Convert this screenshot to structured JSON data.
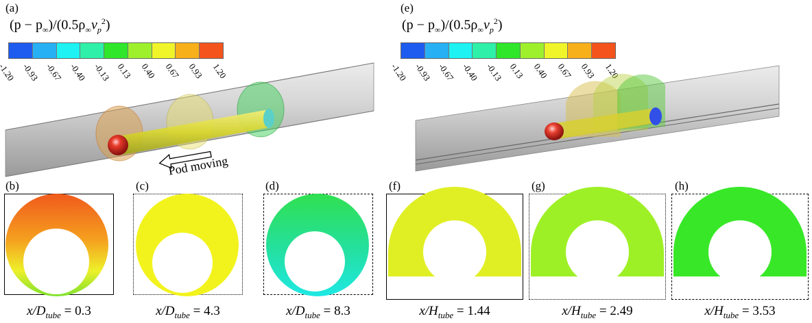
{
  "panels": {
    "a": "(a)",
    "b": "(b)",
    "c": "(c)",
    "d": "(d)",
    "e": "(e)",
    "f": "(f)",
    "g": "(g)",
    "h": "(h)"
  },
  "colorbar": {
    "title_left": "(p − p",
    "title_inf": "∞",
    "title_mid": ")/(0.5ρ",
    "title_v": "v",
    "title_p": "p",
    "title_sq": "2",
    "title_close": ")",
    "ticks": [
      "-1.20",
      "-0.93",
      "-0.67",
      "-0.40",
      "-0.13",
      "0.13",
      "0.40",
      "0.67",
      "0.93",
      "1.20"
    ],
    "colors": [
      "#1e5cf0",
      "#27b0f3",
      "#1ef2f2",
      "#2ef0a8",
      "#2fe62b",
      "#9ef02c",
      "#f0f52a",
      "#f7b01a",
      "#f4541c"
    ]
  },
  "annotation": {
    "pod_moving": "Pod moving"
  },
  "captions": {
    "b": {
      "prefix": "x/D",
      "sub": "tube",
      "value": "= 0.3"
    },
    "c": {
      "prefix": "x/D",
      "sub": "tube",
      "value": "= 4.3"
    },
    "d": {
      "prefix": "x/D",
      "sub": "tube",
      "value": "= 8.3"
    },
    "f": {
      "prefix": "x/H",
      "sub": "tube",
      "value": "= 1.44"
    },
    "g": {
      "prefix": "x/H",
      "sub": "tube",
      "value": "= 2.49"
    },
    "h": {
      "prefix": "x/H",
      "sub": "tube",
      "value": "= 3.53"
    }
  }
}
